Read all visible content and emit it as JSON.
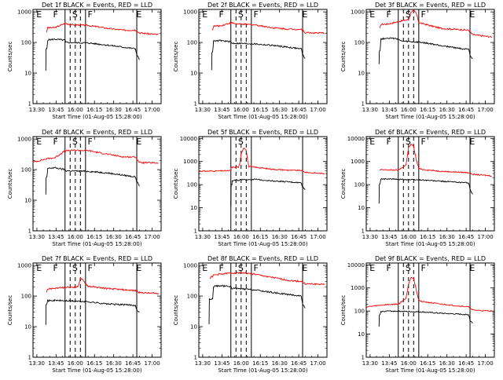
{
  "figure": {
    "x_title": "Start Time (01-Aug-05 15:28:00)",
    "y_title": "Counts/sec",
    "x_ticks": [
      {
        "label": "13:30",
        "t": 0
      },
      {
        "label": "13:45",
        "t": 15
      },
      {
        "label": "16:00",
        "t": 30
      },
      {
        "label": "16:15",
        "t": 45
      },
      {
        "label": "16:30",
        "t": 60
      },
      {
        "label": "16:45",
        "t": 75
      },
      {
        "label": "17:00",
        "t": 90
      }
    ],
    "y_ticks": [
      {
        "label": "1",
        "v": 1
      },
      {
        "label": "10",
        "v": 10
      },
      {
        "label": "100",
        "v": 100
      },
      {
        "label": "1000",
        "v": 1000
      },
      {
        "label": "10000",
        "v": 10000
      }
    ],
    "colors": {
      "events": "#000000",
      "lld": "#ff0000",
      "axes": "#000000"
    }
  },
  "chart_data": [
    {
      "type": "line",
      "title": "Det 1f BLACK = Events, RED = LLD",
      "xlim": [
        -3,
        97
      ],
      "ylog": true,
      "ylim": [
        1,
        1200
      ],
      "events": [
        [
          7,
          12
        ],
        [
          7.2,
          60
        ],
        [
          7.8,
          62
        ],
        [
          8.5,
          120
        ],
        [
          14,
          128
        ],
        [
          22,
          118
        ],
        [
          22.5,
          100
        ],
        [
          40,
          96
        ],
        [
          55,
          82
        ],
        [
          77,
          62
        ],
        [
          78,
          40
        ],
        [
          80,
          28
        ]
      ],
      "lld": [
        [
          7.5,
          220
        ],
        [
          8.5,
          300
        ],
        [
          14,
          305
        ],
        [
          22,
          420
        ],
        [
          27,
          380
        ],
        [
          40,
          360
        ],
        [
          55,
          290
        ],
        [
          68,
          250
        ],
        [
          77,
          255
        ],
        [
          80,
          205
        ],
        [
          95,
          180
        ]
      ],
      "labels": [
        {
          "text": "E",
          "t": -1
        },
        {
          "text": "F",
          "t": 12
        },
        {
          "text": "S",
          "t": 27
        },
        {
          "text": "F",
          "t": 39
        },
        {
          "text": "E",
          "t": 77
        }
      ],
      "solid": [
        22,
        38,
        78
      ],
      "dashed": [
        26,
        30,
        34
      ]
    },
    {
      "type": "line",
      "title": "Det 2f BLACK = Events, RED = LLD",
      "xlim": [
        -3,
        97
      ],
      "ylog": true,
      "ylim": [
        1,
        1200
      ],
      "events": [
        [
          7,
          12
        ],
        [
          7.2,
          48
        ],
        [
          7.8,
          50
        ],
        [
          8.5,
          110
        ],
        [
          14,
          115
        ],
        [
          22,
          105
        ],
        [
          22.5,
          95
        ],
        [
          40,
          90
        ],
        [
          55,
          80
        ],
        [
          77,
          62
        ],
        [
          78,
          40
        ],
        [
          80,
          30
        ]
      ],
      "lld": [
        [
          7.5,
          250
        ],
        [
          8.5,
          340
        ],
        [
          14,
          350
        ],
        [
          22,
          440
        ],
        [
          27,
          400
        ],
        [
          40,
          380
        ],
        [
          55,
          300
        ],
        [
          68,
          270
        ],
        [
          77,
          270
        ],
        [
          80,
          210
        ],
        [
          95,
          200
        ]
      ],
      "labels": [
        {
          "text": "E",
          "t": -1
        },
        {
          "text": "F",
          "t": 12
        },
        {
          "text": "S",
          "t": 27
        },
        {
          "text": "F",
          "t": 39
        },
        {
          "text": "E",
          "t": 77
        }
      ],
      "solid": [
        22,
        38,
        78
      ],
      "dashed": [
        26,
        30,
        34
      ]
    },
    {
      "type": "line",
      "title": "Det 3f BLACK = Events, RED = LLD",
      "xlim": [
        -3,
        97
      ],
      "ylog": true,
      "ylim": [
        1,
        1200
      ],
      "events": [
        [
          7,
          20
        ],
        [
          7.2,
          52
        ],
        [
          7.8,
          55
        ],
        [
          8.5,
          130
        ],
        [
          14,
          140
        ],
        [
          22,
          130
        ],
        [
          24,
          110
        ],
        [
          40,
          100
        ],
        [
          55,
          80
        ],
        [
          77,
          58
        ],
        [
          78,
          38
        ],
        [
          80,
          28
        ]
      ],
      "lld": [
        [
          7.5,
          280
        ],
        [
          8.5,
          390
        ],
        [
          14,
          400
        ],
        [
          22,
          480
        ],
        [
          30,
          560
        ],
        [
          32,
          1000
        ],
        [
          34,
          1100
        ],
        [
          36,
          900
        ],
        [
          38,
          460
        ],
        [
          40,
          420
        ],
        [
          55,
          290
        ],
        [
          77,
          250
        ],
        [
          80,
          180
        ],
        [
          95,
          150
        ]
      ],
      "labels": [
        {
          "text": "E",
          "t": -1
        },
        {
          "text": "F",
          "t": 12
        },
        {
          "text": "S",
          "t": 27
        },
        {
          "text": "F",
          "t": 39
        },
        {
          "text": "E",
          "t": 77
        }
      ],
      "solid": [
        22,
        38,
        78
      ],
      "dashed": [
        26,
        30,
        34
      ]
    },
    {
      "type": "line",
      "title": "Det 4f BLACK = Events, RED = LLD",
      "xlim": [
        -3,
        97
      ],
      "ylog": true,
      "ylim": [
        1,
        1200
      ],
      "events": [
        [
          7,
          15
        ],
        [
          7.2,
          52
        ],
        [
          7.8,
          55
        ],
        [
          8.5,
          110
        ],
        [
          14,
          115
        ],
        [
          22,
          100
        ],
        [
          22.5,
          92
        ],
        [
          40,
          88
        ],
        [
          55,
          78
        ],
        [
          77,
          58
        ],
        [
          78,
          40
        ],
        [
          80,
          30
        ]
      ],
      "lld": [
        [
          -3,
          175
        ],
        [
          8.5,
          230
        ],
        [
          14,
          245
        ],
        [
          22,
          410
        ],
        [
          30,
          430
        ],
        [
          40,
          420
        ],
        [
          55,
          320
        ],
        [
          68,
          260
        ],
        [
          77,
          260
        ],
        [
          80,
          170
        ],
        [
          95,
          165
        ]
      ],
      "labels": [
        {
          "text": "E",
          "t": -1
        },
        {
          "text": "F",
          "t": 12
        },
        {
          "text": "S",
          "t": 27
        },
        {
          "text": "F",
          "t": 39
        },
        {
          "text": "E",
          "t": 77
        }
      ],
      "solid": [
        22,
        38,
        78
      ],
      "dashed": [
        26,
        30,
        34
      ]
    },
    {
      "type": "line",
      "title": "Det 5f BLACK = Events, RED = LLD",
      "xlim": [
        -3,
        97
      ],
      "ylog": true,
      "ylim": [
        1,
        12000
      ],
      "events": [
        [
          22,
          12
        ],
        [
          22.2,
          95
        ],
        [
          22.8,
          100
        ],
        [
          23,
          150
        ],
        [
          35,
          165
        ],
        [
          40,
          170
        ],
        [
          55,
          145
        ],
        [
          68,
          130
        ],
        [
          77,
          120
        ],
        [
          78,
          80
        ],
        [
          80,
          60
        ]
      ],
      "lld": [
        [
          -3,
          380
        ],
        [
          10,
          390
        ],
        [
          22,
          400
        ],
        [
          22.2,
          560
        ],
        [
          28,
          580
        ],
        [
          29,
          800
        ],
        [
          30,
          2200
        ],
        [
          32,
          4000
        ],
        [
          34,
          3200
        ],
        [
          35,
          1200
        ],
        [
          36,
          600
        ],
        [
          40,
          580
        ],
        [
          55,
          460
        ],
        [
          68,
          420
        ],
        [
          77,
          410
        ],
        [
          80,
          340
        ],
        [
          95,
          300
        ]
      ],
      "labels": [
        {
          "text": "S",
          "t": 27
        }
      ],
      "solid": [
        22,
        38,
        78
      ],
      "dashed": [
        26,
        30,
        34
      ]
    },
    {
      "type": "line",
      "title": "Det 6f BLACK = Events, RED = LLD",
      "xlim": [
        -3,
        97
      ],
      "ylog": true,
      "ylim": [
        1,
        12000
      ],
      "events": [
        [
          7,
          15
        ],
        [
          7.2,
          100
        ],
        [
          7.8,
          110
        ],
        [
          8.5,
          180
        ],
        [
          14,
          175
        ],
        [
          22,
          170
        ],
        [
          30,
          165
        ],
        [
          40,
          160
        ],
        [
          55,
          140
        ],
        [
          77,
          120
        ],
        [
          78,
          60
        ],
        [
          80,
          40
        ]
      ],
      "lld": [
        [
          7.5,
          420
        ],
        [
          8.5,
          440
        ],
        [
          14,
          430
        ],
        [
          22,
          430
        ],
        [
          28,
          700
        ],
        [
          30,
          4000
        ],
        [
          32,
          5500
        ],
        [
          34,
          4600
        ],
        [
          36,
          1200
        ],
        [
          38,
          500
        ],
        [
          40,
          460
        ],
        [
          55,
          380
        ],
        [
          77,
          330
        ],
        [
          80,
          280
        ],
        [
          95,
          240
        ]
      ],
      "labels": [
        {
          "text": "E",
          "t": -1
        },
        {
          "text": "F",
          "t": 12
        },
        {
          "text": "S",
          "t": 27
        },
        {
          "text": "F",
          "t": 39
        },
        {
          "text": "E",
          "t": 77
        }
      ],
      "solid": [
        22,
        38,
        78
      ],
      "dashed": [
        26,
        30,
        34
      ]
    },
    {
      "type": "line",
      "title": "Det 7f BLACK = Events, RED = LLD",
      "xlim": [
        -3,
        97
      ],
      "ylog": true,
      "ylim": [
        1,
        1200
      ],
      "events": [
        [
          7,
          12
        ],
        [
          7.2,
          55
        ],
        [
          7.8,
          58
        ],
        [
          8.5,
          70
        ],
        [
          14,
          72
        ],
        [
          22,
          70
        ],
        [
          30,
          68
        ],
        [
          40,
          65
        ],
        [
          55,
          55
        ],
        [
          77,
          50
        ],
        [
          78,
          35
        ],
        [
          80,
          28
        ]
      ],
      "lld": [
        [
          7.5,
          140
        ],
        [
          8.5,
          170
        ],
        [
          14,
          180
        ],
        [
          22,
          190
        ],
        [
          32,
          200
        ],
        [
          34,
          380
        ],
        [
          36,
          320
        ],
        [
          40,
          210
        ],
        [
          55,
          175
        ],
        [
          68,
          160
        ],
        [
          77,
          150
        ],
        [
          80,
          130
        ],
        [
          95,
          120
        ]
      ],
      "labels": [
        {
          "text": "E",
          "t": -1
        },
        {
          "text": "F",
          "t": 12
        },
        {
          "text": "S",
          "t": 27
        },
        {
          "text": "F",
          "t": 39
        },
        {
          "text": "E",
          "t": 77
        }
      ],
      "solid": [
        22,
        38,
        78
      ],
      "dashed": [
        26,
        30,
        34
      ]
    },
    {
      "type": "line",
      "title": "Det 8f BLACK = Events, RED = LLD",
      "xlim": [
        -3,
        97
      ],
      "ylog": true,
      "ylim": [
        1,
        1200
      ],
      "events": [
        [
          5,
          12
        ],
        [
          5.2,
          78
        ],
        [
          7.8,
          80
        ],
        [
          8.5,
          210
        ],
        [
          14,
          215
        ],
        [
          22,
          205
        ],
        [
          22.5,
          180
        ],
        [
          40,
          160
        ],
        [
          55,
          130
        ],
        [
          77,
          100
        ],
        [
          78,
          55
        ],
        [
          80,
          40
        ]
      ],
      "lld": [
        [
          5.5,
          380
        ],
        [
          8.5,
          480
        ],
        [
          14,
          520
        ],
        [
          22,
          560
        ],
        [
          30,
          580
        ],
        [
          40,
          520
        ],
        [
          55,
          400
        ],
        [
          68,
          320
        ],
        [
          77,
          300
        ],
        [
          80,
          250
        ],
        [
          95,
          240
        ]
      ],
      "labels": [
        {
          "text": "E",
          "t": -1
        },
        {
          "text": "F",
          "t": 12
        },
        {
          "text": "S",
          "t": 27
        },
        {
          "text": "F",
          "t": 39
        },
        {
          "text": "E",
          "t": 77
        }
      ],
      "solid": [
        22,
        38,
        78
      ],
      "dashed": [
        26,
        30,
        34
      ]
    },
    {
      "type": "line",
      "title": "Det 9f BLACK = Events, RED = LLD",
      "xlim": [
        -3,
        97
      ],
      "ylog": true,
      "ylim": [
        1,
        12000
      ],
      "events": [
        [
          7,
          20
        ],
        [
          7.2,
          65
        ],
        [
          7.8,
          68
        ],
        [
          8.5,
          95
        ],
        [
          14,
          100
        ],
        [
          22,
          98
        ],
        [
          30,
          95
        ],
        [
          40,
          92
        ],
        [
          55,
          80
        ],
        [
          77,
          70
        ],
        [
          78,
          40
        ],
        [
          80,
          30
        ]
      ],
      "lld": [
        [
          -3,
          150
        ],
        [
          8.5,
          180
        ],
        [
          14,
          190
        ],
        [
          22,
          200
        ],
        [
          28,
          350
        ],
        [
          30,
          1500
        ],
        [
          32,
          3000
        ],
        [
          34,
          2600
        ],
        [
          36,
          800
        ],
        [
          38,
          300
        ],
        [
          40,
          260
        ],
        [
          55,
          200
        ],
        [
          77,
          150
        ],
        [
          80,
          110
        ],
        [
          95,
          100
        ]
      ],
      "labels": [
        {
          "text": "E",
          "t": -1
        },
        {
          "text": "F",
          "t": 12
        },
        {
          "text": "S",
          "t": 27
        },
        {
          "text": "F",
          "t": 39
        },
        {
          "text": "E",
          "t": 77
        }
      ],
      "solid": [
        22,
        38,
        78
      ],
      "dashed": [
        26,
        30,
        34
      ]
    }
  ]
}
